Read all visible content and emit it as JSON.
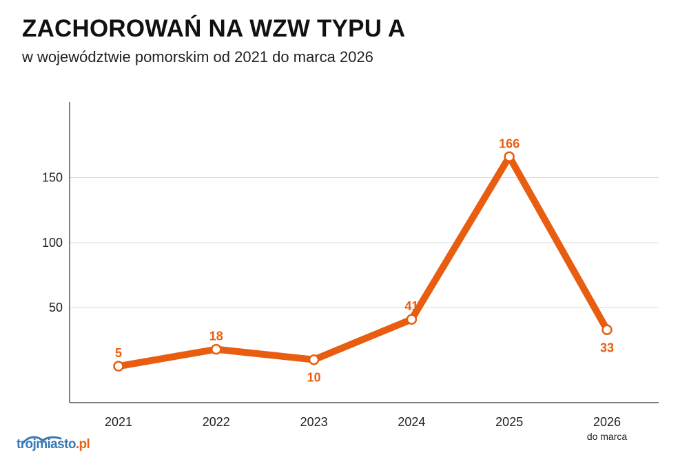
{
  "title": "ZACHOROWAŃ NA WZW TYPU A",
  "subtitle": "w województwie pomorskim od 2021 do marca 2026",
  "logo": {
    "main": "trojmiasto",
    "tld": ".pl"
  },
  "chart_data": {
    "type": "line",
    "categories": [
      "2021",
      "2022",
      "2023",
      "2024",
      "2025",
      "2026"
    ],
    "category_sublabels": [
      "",
      "",
      "",
      "",
      "",
      "do marca"
    ],
    "series": [
      {
        "values": [
          5,
          18,
          10,
          41,
          166,
          33
        ]
      }
    ],
    "data_labels": [
      "5",
      "18",
      "10",
      "41",
      "166",
      "33"
    ],
    "yticks": [
      50,
      100,
      150
    ],
    "ylim": [
      -23,
      208
    ],
    "grid": true,
    "color": "#e85d0f"
  }
}
